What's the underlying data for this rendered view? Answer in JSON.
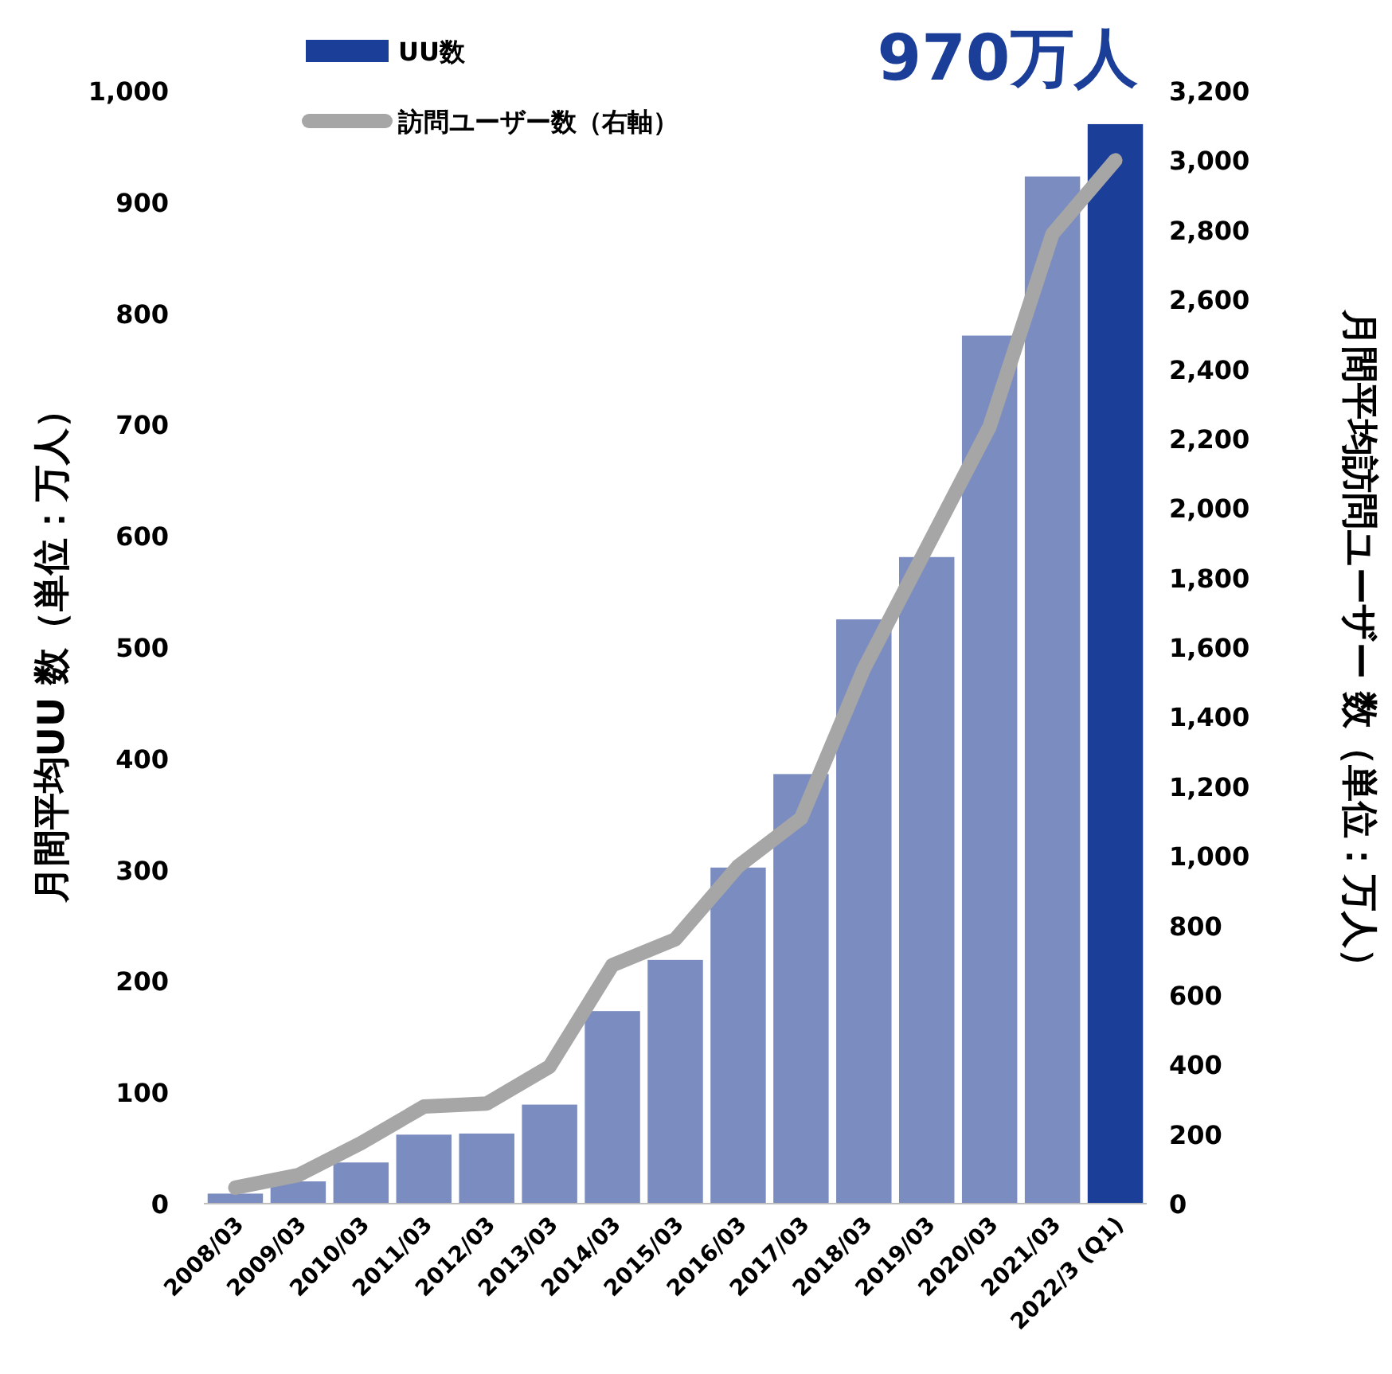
{
  "chart_data": {
    "type": "bar",
    "categories": [
      "2008/03",
      "2009/03",
      "2010/03",
      "2011/03",
      "2012/03",
      "2013/03",
      "2014/03",
      "2015/03",
      "2016/03",
      "2017/03",
      "2018/03",
      "2019/03",
      "2020/03",
      "2021/03",
      "2022/3 (Q1)"
    ],
    "series": [
      {
        "name": "UU数",
        "color": "#1b3f99",
        "colors": [
          "#7b8dc0",
          "#7b8dc0",
          "#7b8dc0",
          "#7b8dc0",
          "#7b8dc0",
          "#7b8dc0",
          "#7b8dc0",
          "#7b8dc0",
          "#7b8dc0",
          "#7b8dc0",
          "#7b8dc0",
          "#7b8dc0",
          "#7b8dc0",
          "#7b8dc0",
          "#1b3f99"
        ],
        "values": [
          9,
          20,
          37,
          62,
          63,
          89,
          173,
          219,
          302,
          386,
          525,
          581,
          780,
          923,
          970
        ]
      },
      {
        "name": "訪問ユーザー数（右軸）",
        "type": "line",
        "axis": "y2",
        "color": "#a6a6a6",
        "values": [
          46,
          82,
          174,
          279,
          288,
          394,
          686,
          760,
          970,
          1108,
          1538,
          1886,
          2234,
          2788,
          3000
        ]
      }
    ],
    "ylabel": "月間平均UU 数（単位：万人）",
    "y2label": "月間平均訪問ユーザー 数（単位：万人）",
    "ylim": [
      0,
      1000
    ],
    "yticks": [
      0,
      100,
      200,
      300,
      400,
      500,
      600,
      700,
      800,
      900,
      {
        "value": 1000,
        "label": "1,000"
      }
    ],
    "y2lim": [
      0,
      3200
    ],
    "y2ticks": [
      0,
      200,
      400,
      600,
      800,
      {
        "value": 1000,
        "label": "1,000"
      },
      {
        "value": 1200,
        "label": "1,200"
      },
      {
        "value": 1400,
        "label": "1,400"
      },
      {
        "value": 1600,
        "label": "1,600"
      },
      {
        "value": 1800,
        "label": "1,800"
      },
      {
        "value": 2000,
        "label": "2,000"
      },
      {
        "value": 2200,
        "label": "2,200"
      },
      {
        "value": 2400,
        "label": "2,400"
      },
      {
        "value": 2600,
        "label": "2,600"
      },
      {
        "value": 2800,
        "label": "2,800"
      },
      {
        "value": 3000,
        "label": "3,000"
      },
      {
        "value": 3200,
        "label": "3,200"
      }
    ],
    "annotations": [
      {
        "text": "970万人",
        "x": "2022/3 (Q1)",
        "y": 970
      }
    ],
    "legend": "top left",
    "grid": false,
    "line_style": "solid",
    "marker": "none"
  }
}
